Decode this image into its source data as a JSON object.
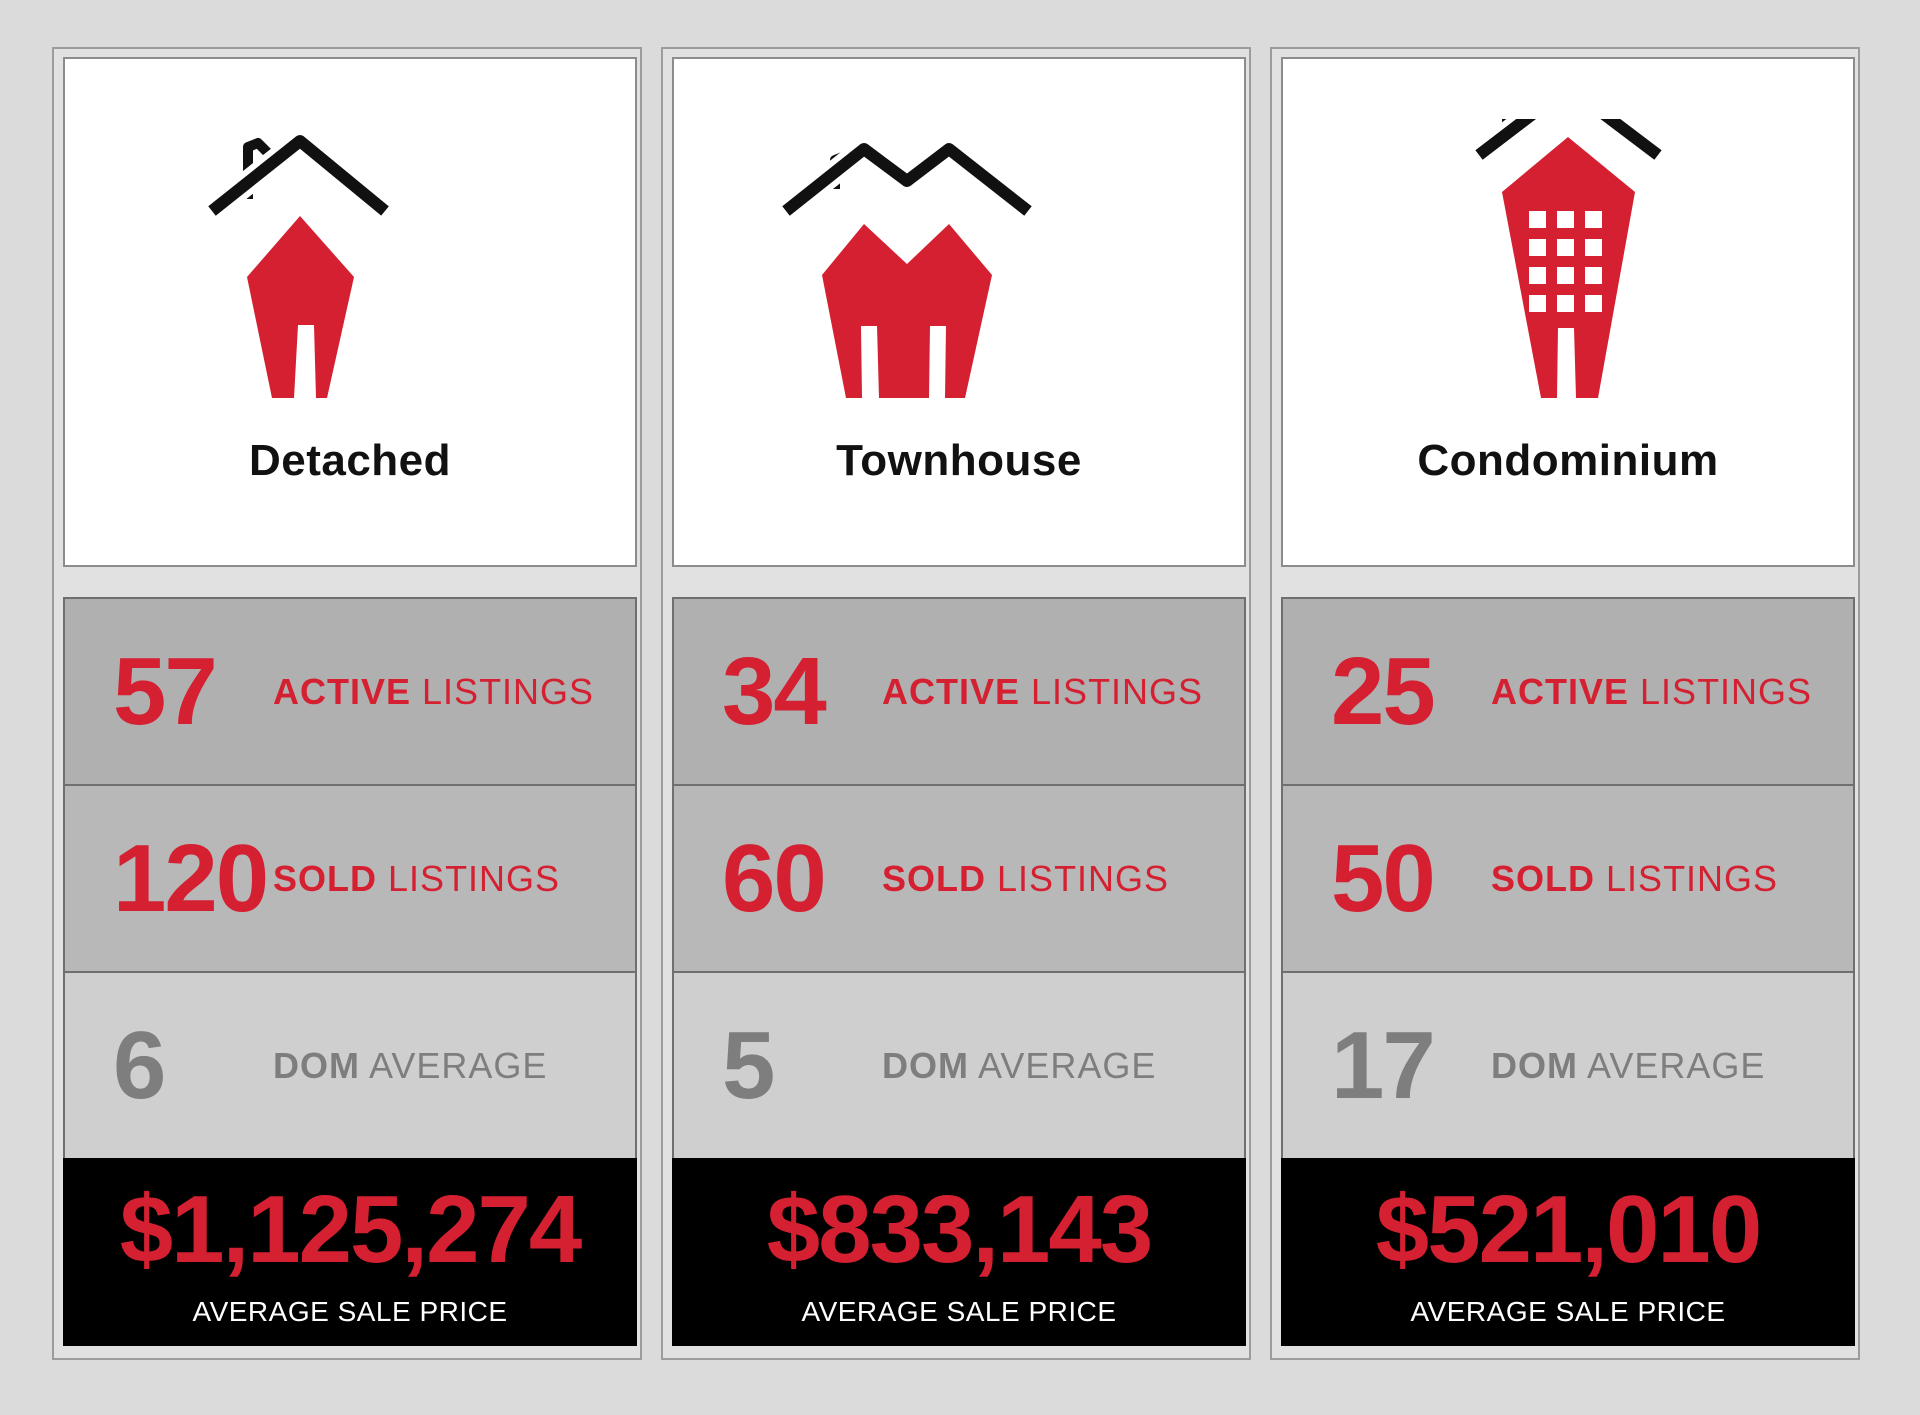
{
  "colors": {
    "accent": "#d42031",
    "roof": "#111111",
    "muted": "#7e7e7e"
  },
  "columns": [
    {
      "title": "Detached",
      "icon": "detached-house-icon",
      "active_number": "57",
      "active_strong": "ACTIVE",
      "active_rest": "LISTINGS",
      "sold_number": "120",
      "sold_strong": "SOLD",
      "sold_rest": "LISTINGS",
      "dom_number": "6",
      "dom_strong": "DOM",
      "dom_rest": "AVERAGE",
      "price": "$1,125,274",
      "price_label": "AVERAGE SALE PRICE"
    },
    {
      "title": "Townhouse",
      "icon": "townhouse-icon",
      "active_number": "34",
      "active_strong": "ACTIVE",
      "active_rest": "LISTINGS",
      "sold_number": "60",
      "sold_strong": "SOLD",
      "sold_rest": "LISTINGS",
      "dom_number": "5",
      "dom_strong": "DOM",
      "dom_rest": "AVERAGE",
      "price": "$833,143",
      "price_label": "AVERAGE SALE PRICE"
    },
    {
      "title": "Condominium",
      "icon": "condominium-building-icon",
      "active_number": "25",
      "active_strong": "ACTIVE",
      "active_rest": "LISTINGS",
      "sold_number": "50",
      "sold_strong": "SOLD",
      "sold_rest": "LISTINGS",
      "dom_number": "17",
      "dom_strong": "DOM",
      "dom_rest": "AVERAGE",
      "price": "$521,010",
      "price_label": "AVERAGE SALE PRICE"
    }
  ]
}
